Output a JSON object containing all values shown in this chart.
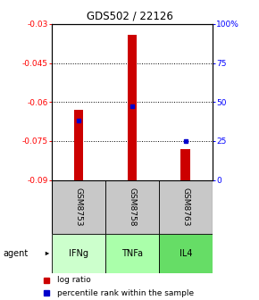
{
  "title": "GDS502 / 22126",
  "samples": [
    "GSM8753",
    "GSM8758",
    "GSM8763"
  ],
  "agents": [
    "IFNg",
    "TNFa",
    "IL4"
  ],
  "log_ratios": [
    -0.063,
    -0.034,
    -0.078
  ],
  "bar_base": -0.09,
  "percentile_ranks": [
    0.38,
    0.47,
    0.25
  ],
  "ylim_left": [
    -0.09,
    -0.03
  ],
  "yticks_left": [
    -0.09,
    -0.075,
    -0.06,
    -0.045,
    -0.03
  ],
  "yticks_right": [
    0,
    25,
    50,
    75,
    100
  ],
  "bar_color": "#cc0000",
  "percentile_color": "#0000cc",
  "sample_bg": "#c8c8c8",
  "agent_colors": [
    "#ccffcc",
    "#aaffaa",
    "#66dd66"
  ],
  "legend_log_ratio": "log ratio",
  "legend_percentile": "percentile rank within the sample",
  "agent_label": "agent",
  "grid_ticks": [
    -0.045,
    -0.06,
    -0.075
  ],
  "bar_width": 0.18
}
